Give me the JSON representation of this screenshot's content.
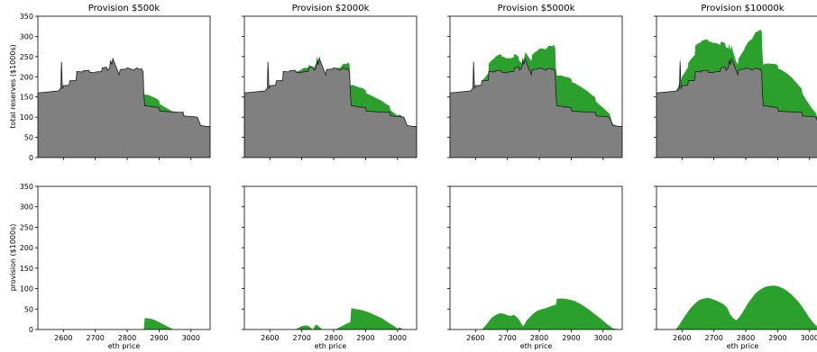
{
  "figure": {
    "background": "#ffffff",
    "reserve_color": "#808080",
    "provision_color": "#2ca02c",
    "edge_color": "#1a1a1a"
  },
  "chart_data": {
    "type": "area",
    "layout": "2 rows x 4 columns",
    "xlabel": "eth price",
    "top_ylabel": "total reserves ($1000s)",
    "bottom_ylabel": "provision ($1000s)",
    "xlim": [
      2520,
      3060
    ],
    "ylim": [
      0,
      350
    ],
    "x_ticks": [
      2600,
      2700,
      2800,
      2900,
      3000
    ],
    "y_ticks": [
      0,
      50,
      100,
      150,
      200,
      250,
      300,
      350
    ],
    "x": [
      2520,
      2560,
      2585,
      2592,
      2594,
      2597,
      2600,
      2618,
      2620,
      2640,
      2642,
      2660,
      2662,
      2680,
      2683,
      2700,
      2702,
      2720,
      2722,
      2735,
      2738,
      2745,
      2748,
      2752,
      2755,
      2775,
      2778,
      2795,
      2800,
      2810,
      2820,
      2830,
      2840,
      2845,
      2850,
      2852,
      2855,
      2860,
      2870,
      2880,
      2890,
      2900,
      2902,
      2920,
      2940,
      2950,
      2960,
      2970,
      2975,
      2978,
      2980,
      2990,
      3000,
      3010,
      3020,
      3030,
      3040,
      3050,
      3060
    ],
    "base_reserves": [
      160,
      163,
      165,
      172,
      237,
      170,
      178,
      179,
      190,
      191,
      213,
      212,
      215,
      216,
      211,
      210,
      212,
      213,
      222,
      224,
      216,
      222,
      240,
      230,
      245,
      205,
      218,
      219,
      222,
      220,
      216,
      222,
      218,
      220,
      212,
      160,
      128,
      128,
      127,
      125,
      125,
      123,
      115,
      114,
      113,
      113,
      112,
      112,
      113,
      103,
      103,
      102,
      102,
      101,
      100,
      80,
      78,
      77,
      77
    ],
    "series": [
      {
        "name": "Provision $500k",
        "provision": [
          0,
          0,
          0,
          0,
          0,
          0,
          0,
          0,
          0,
          0,
          0,
          0,
          0,
          0,
          0,
          0,
          0,
          0,
          0,
          0,
          0,
          0,
          0,
          0,
          0,
          0,
          0,
          0,
          0,
          0,
          0,
          0,
          0,
          0,
          0,
          0,
          28,
          27,
          25,
          22,
          20,
          17,
          15,
          12,
          7,
          3,
          0,
          0,
          0,
          0,
          0,
          0,
          0,
          0,
          0,
          0,
          0,
          0,
          0
        ]
      },
      {
        "name": "Provision $2000k",
        "provision": [
          0,
          0,
          0,
          0,
          0,
          0,
          0,
          0,
          0,
          0,
          0,
          0,
          0,
          0,
          0,
          0,
          0,
          0,
          0,
          0,
          0,
          0,
          0,
          0,
          0,
          0,
          0,
          0,
          0,
          0,
          0,
          0,
          0,
          0,
          0,
          0,
          0,
          0,
          0,
          0,
          0,
          0,
          0,
          0,
          0,
          0,
          0,
          0,
          0,
          0,
          0,
          0,
          0,
          0,
          0,
          0,
          0,
          0,
          0
        ]
      },
      {
        "name": "Provision $5000k",
        "provision": [
          0,
          0,
          0,
          0,
          0,
          0,
          0,
          0,
          0,
          0,
          0,
          0,
          0,
          0,
          0,
          0,
          0,
          0,
          0,
          0,
          0,
          0,
          0,
          0,
          0,
          0,
          0,
          0,
          0,
          0,
          0,
          0,
          0,
          0,
          0,
          0,
          0,
          0,
          0,
          0,
          0,
          0,
          0,
          0,
          0,
          0,
          0,
          0,
          0,
          0,
          0,
          0,
          0,
          0,
          0,
          0,
          0,
          0,
          0
        ]
      },
      {
        "name": "Provision $10000k",
        "provision": [
          0,
          0,
          0,
          0,
          0,
          0,
          0,
          0,
          0,
          0,
          0,
          0,
          0,
          0,
          0,
          0,
          0,
          0,
          0,
          0,
          0,
          0,
          0,
          0,
          0,
          0,
          0,
          0,
          0,
          0,
          0,
          0,
          0,
          0,
          0,
          0,
          0,
          0,
          0,
          0,
          0,
          0,
          0,
          0,
          0,
          0,
          0,
          0,
          0,
          0,
          0,
          0,
          0,
          0,
          0,
          0,
          0,
          0,
          0
        ]
      }
    ],
    "provision_curves": [
      {
        "x": [
          2852,
          2855,
          2870,
          2880,
          2890,
          2900,
          2910,
          2920,
          2935,
          2945
        ],
        "y": [
          0,
          28,
          27,
          25,
          22,
          18,
          14,
          10,
          4,
          0
        ]
      },
      {
        "x": [
          2680,
          2690,
          2700,
          2710,
          2720,
          2725,
          2730,
          2735,
          2740,
          2745,
          2750,
          2755,
          2765,
          2780,
          2800,
          2810,
          2820,
          2830,
          2840,
          2852,
          2855,
          2870,
          2890,
          2910,
          2930,
          2950,
          2970,
          2990,
          3000,
          3005,
          3010,
          3015,
          3020
        ],
        "y": [
          0,
          4,
          8,
          10,
          9,
          6,
          3,
          0,
          8,
          12,
          10,
          6,
          0,
          0,
          0,
          2,
          6,
          10,
          14,
          18,
          52,
          50,
          47,
          42,
          35,
          28,
          18,
          8,
          2,
          5,
          4,
          1,
          0
        ]
      },
      {
        "x": [
          2620,
          2630,
          2640,
          2650,
          2660,
          2670,
          2680,
          2690,
          2700,
          2710,
          2720,
          2730,
          2740,
          2745,
          2750,
          2755,
          2760,
          2770,
          2780,
          2790,
          2800,
          2810,
          2820,
          2830,
          2840,
          2850,
          2852,
          2855,
          2870,
          2890,
          2910,
          2930,
          2950,
          2970,
          2990,
          3010,
          3030,
          3050
        ],
        "y": [
          0,
          8,
          18,
          28,
          34,
          38,
          40,
          38,
          35,
          33,
          36,
          30,
          20,
          12,
          8,
          14,
          22,
          30,
          38,
          44,
          48,
          50,
          52,
          55,
          58,
          60,
          62,
          75,
          76,
          74,
          70,
          62,
          52,
          40,
          28,
          15,
          3,
          0
        ]
      },
      {
        "x": [
          2580,
          2590,
          2600,
          2610,
          2620,
          2630,
          2640,
          2650,
          2660,
          2670,
          2680,
          2690,
          2700,
          2710,
          2720,
          2730,
          2740,
          2745,
          2750,
          2760,
          2770,
          2780,
          2790,
          2800,
          2810,
          2820,
          2830,
          2840,
          2850,
          2860,
          2870,
          2880,
          2890,
          2900,
          2910,
          2920,
          2930,
          2940,
          2950,
          2960,
          2970,
          2980,
          2990,
          3000,
          3010,
          3020,
          3030,
          3040,
          3050,
          3060
        ],
        "y": [
          0,
          10,
          22,
          34,
          45,
          55,
          63,
          70,
          74,
          76,
          77,
          76,
          73,
          70,
          66,
          62,
          55,
          48,
          38,
          28,
          22,
          30,
          42,
          55,
          68,
          78,
          88,
          95,
          100,
          104,
          106,
          107,
          107,
          106,
          103,
          99,
          94,
          88,
          80,
          72,
          63,
          52,
          40,
          28,
          18,
          10,
          4,
          1,
          0,
          0
        ]
      }
    ]
  },
  "panels": [
    {
      "title": "Provision $500k"
    },
    {
      "title": "Provision $2000k"
    },
    {
      "title": "Provision $5000k"
    },
    {
      "title": "Provision $10000k"
    }
  ]
}
